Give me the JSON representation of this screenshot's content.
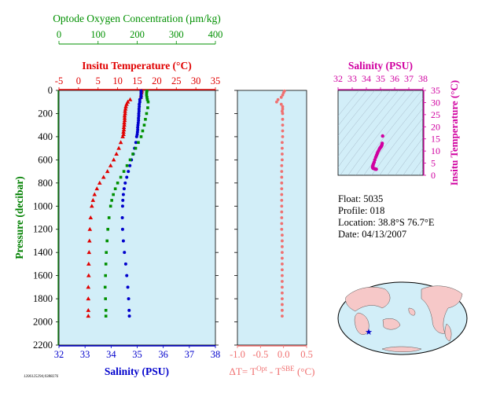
{
  "colors": {
    "background": "#ffffff",
    "panel": "#d2eef8",
    "temperature": "#e00000",
    "salinity": "#0000cc",
    "oxygen": "#009000",
    "delta": "#f07070",
    "ts": "#d000a0",
    "depth_axis": "#008000"
  },
  "float_info": {
    "float": "Float:  5035",
    "profile": "Profile:  018",
    "location": "Location:  38.8°S  76.7°E",
    "date": "Date:  04/13/2007"
  },
  "file_id": "1206125294;0388276",
  "chart_data": [
    {
      "type": "scatter",
      "ylabel": "Pressure (decibar)",
      "ylim": [
        2200,
        0
      ],
      "yticks": [
        0,
        200,
        400,
        600,
        800,
        1000,
        1200,
        1400,
        1600,
        1800,
        2000,
        2200
      ],
      "axes": {
        "oxygen": {
          "label": "Optode Oxygen Concentration (µm/kg)",
          "range": [
            0,
            400
          ],
          "ticks": [
            0,
            100,
            200,
            300,
            400
          ]
        },
        "temperature": {
          "label": "Insitu Temperature (°C)",
          "range": [
            -5,
            35
          ],
          "ticks": [
            -5,
            0,
            5,
            10,
            15,
            20,
            25,
            30,
            35
          ]
        },
        "salinity": {
          "label": "Salinity (PSU)",
          "range": [
            32,
            38
          ],
          "ticks": [
            32,
            33,
            34,
            35,
            36,
            37,
            38
          ]
        }
      },
      "series": [
        {
          "axis": "temperature",
          "marker": "triangle",
          "color": "#e00000",
          "pressure": [
            5,
            20,
            40,
            60,
            80,
            100,
            120,
            140,
            160,
            180,
            200,
            220,
            240,
            260,
            280,
            300,
            320,
            340,
            360,
            380,
            400,
            450,
            500,
            550,
            600,
            650,
            700,
            750,
            800,
            850,
            900,
            950,
            1000,
            1100,
            1200,
            1300,
            1400,
            1500,
            1600,
            1700,
            1800,
            1900,
            1950
          ],
          "values": [
            16.2,
            16.1,
            16.0,
            15.9,
            13.2,
            12.6,
            12.3,
            12.1,
            12.0,
            11.9,
            11.9,
            11.8,
            11.8,
            11.8,
            11.7,
            11.7,
            11.6,
            11.6,
            11.5,
            11.5,
            11.3,
            10.8,
            10.3,
            9.7,
            9.0,
            8.2,
            7.4,
            6.4,
            5.4,
            4.7,
            4.1,
            3.7,
            3.4,
            3.1,
            2.9,
            2.8,
            2.7,
            2.6,
            2.6,
            2.5,
            2.5,
            2.5,
            2.5
          ]
        },
        {
          "axis": "salinity",
          "marker": "circle",
          "color": "#0000cc",
          "pressure": [
            5,
            20,
            40,
            60,
            80,
            100,
            120,
            140,
            160,
            180,
            200,
            220,
            240,
            260,
            280,
            300,
            320,
            340,
            360,
            380,
            400,
            450,
            500,
            550,
            600,
            650,
            700,
            750,
            800,
            850,
            900,
            950,
            1000,
            1100,
            1200,
            1300,
            1400,
            1500,
            1600,
            1700,
            1800,
            1900,
            1950
          ],
          "values": [
            35.15,
            35.15,
            35.15,
            35.15,
            35.1,
            35.1,
            35.08,
            35.08,
            35.07,
            35.07,
            35.06,
            35.06,
            35.05,
            35.05,
            35.04,
            35.03,
            35.02,
            35.02,
            35.01,
            35.0,
            34.98,
            34.95,
            34.9,
            34.85,
            34.78,
            34.72,
            34.66,
            34.6,
            34.54,
            34.5,
            34.47,
            34.45,
            34.44,
            34.43,
            34.44,
            34.47,
            34.51,
            34.56,
            34.6,
            34.64,
            34.67,
            34.69,
            34.7
          ]
        },
        {
          "axis": "oxygen",
          "marker": "square",
          "color": "#009000",
          "pressure": [
            5,
            20,
            40,
            60,
            80,
            100,
            150,
            200,
            250,
            300,
            350,
            400,
            450,
            500,
            550,
            600,
            650,
            700,
            750,
            800,
            850,
            900,
            950,
            1000,
            1100,
            1200,
            1300,
            1400,
            1500,
            1600,
            1700,
            1800,
            1900,
            1950
          ],
          "values": [
            225,
            224,
            224,
            225,
            226,
            228,
            227,
            224,
            221,
            218,
            214,
            210,
            203,
            196,
            189,
            182,
            174,
            166,
            158,
            150,
            144,
            139,
            135,
            132,
            128,
            125,
            123,
            121,
            120,
            119,
            118,
            119,
            120,
            120
          ]
        }
      ]
    },
    {
      "type": "scatter",
      "xlabel": "ΔT= T^Opt - T^SBE (°C)",
      "xlim": [
        -1.0,
        0.5
      ],
      "xticks": [
        "-1.0",
        "-0.5",
        "0.0",
        "0.5"
      ],
      "ylim": [
        2200,
        0
      ],
      "series": [
        {
          "name": "dT",
          "marker": "circle",
          "color": "#f07070",
          "pressure": [
            5,
            20,
            40,
            60,
            80,
            100,
            120,
            140,
            160,
            180,
            200,
            250,
            300,
            350,
            400,
            450,
            500,
            550,
            600,
            650,
            700,
            750,
            800,
            850,
            900,
            950,
            1000,
            1050,
            1100,
            1150,
            1200,
            1250,
            1300,
            1350,
            1400,
            1450,
            1500,
            1550,
            1600,
            1650,
            1700,
            1750,
            1800,
            1850,
            1900,
            1950
          ],
          "values": [
            0.02,
            0.0,
            -0.02,
            -0.05,
            -0.12,
            -0.15,
            -0.05,
            -0.02,
            -0.02,
            -0.03,
            -0.02,
            -0.02,
            -0.02,
            -0.02,
            -0.02,
            -0.03,
            -0.03,
            -0.03,
            -0.03,
            -0.04,
            -0.04,
            -0.04,
            -0.04,
            -0.04,
            -0.04,
            -0.04,
            -0.04,
            -0.04,
            -0.04,
            -0.04,
            -0.04,
            -0.03,
            -0.03,
            -0.03,
            -0.03,
            -0.03,
            -0.03,
            -0.03,
            -0.03,
            -0.03,
            -0.03,
            -0.03,
            -0.03,
            -0.03,
            -0.03,
            -0.03
          ]
        }
      ]
    },
    {
      "type": "scatter",
      "title": "Salinity (PSU)",
      "xlabel": "Salinity (PSU)",
      "ylabel": "Insitu Temperature (°C)",
      "xlim": [
        32,
        38
      ],
      "ylim": [
        0,
        35
      ],
      "xticks": [
        32,
        33,
        34,
        35,
        36,
        37,
        38
      ],
      "yticks": [
        0,
        5,
        10,
        15,
        20,
        25,
        30,
        35
      ],
      "series": [
        {
          "name": "TS",
          "marker": "circle",
          "color": "#d000a0",
          "salinity": [
            35.15,
            35.12,
            35.1,
            35.08,
            35.06,
            35.05,
            35.03,
            35.0,
            34.97,
            34.93,
            34.88,
            34.82,
            34.77,
            34.72,
            34.66,
            34.6,
            34.55,
            34.5,
            34.47,
            34.45,
            34.44,
            34.45,
            34.48,
            34.52,
            34.57,
            34.62,
            34.67,
            34.7
          ],
          "temperature": [
            16.2,
            13.2,
            12.6,
            12.2,
            12.0,
            11.9,
            11.7,
            11.5,
            11.3,
            10.9,
            10.3,
            9.7,
            9.0,
            8.2,
            7.4,
            6.4,
            5.4,
            4.7,
            4.1,
            3.7,
            3.4,
            3.1,
            2.9,
            2.8,
            2.7,
            2.6,
            2.5,
            2.5
          ]
        }
      ]
    }
  ],
  "map": {
    "marker_lat": -38.8,
    "marker_lon": 76.7,
    "marker_color": "#0000cc"
  }
}
